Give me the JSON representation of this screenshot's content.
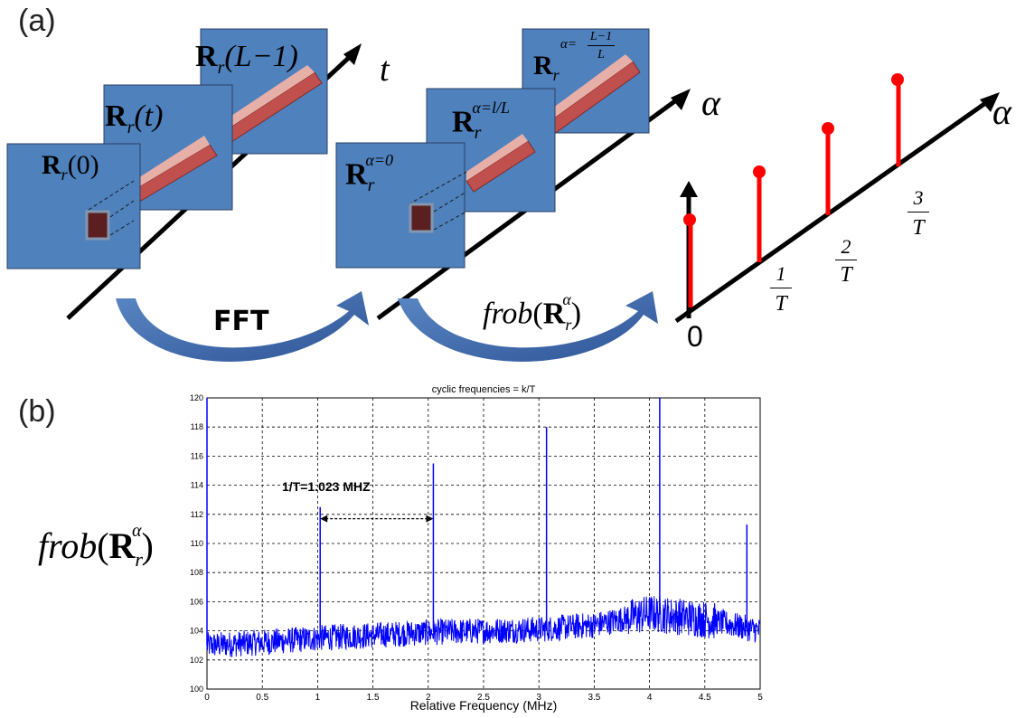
{
  "panel_a": {
    "label": "(a)",
    "stack1": {
      "frame_back": {
        "base": "R",
        "sub": "r",
        "arg": "(L−1)"
      },
      "frame_mid": {
        "base": "R",
        "sub": "r",
        "arg": "(t)"
      },
      "frame_front": {
        "base": "R",
        "sub": "r",
        "arg": "(0)"
      },
      "axis_label": "t"
    },
    "fft_label": "FFT",
    "stack2": {
      "frame_back": {
        "base": "R",
        "sub": "r",
        "sup_alpha": "α=",
        "sup_num": "L−1",
        "sup_den": "L"
      },
      "frame_mid": {
        "base": "R",
        "sub": "r",
        "sup": "α=l/L"
      },
      "frame_front": {
        "base": "R",
        "sub": "r",
        "sup": "α=0"
      },
      "axis_label": "α"
    },
    "frob_label": {
      "prefix": "frob",
      "base": "R",
      "sub": "r",
      "sup": "α"
    },
    "stem_plot": {
      "axis_label": "α",
      "origin_label": "0",
      "ticks": [
        {
          "num": "1",
          "den": "T"
        },
        {
          "num": "2",
          "den": "T"
        },
        {
          "num": "3",
          "den": "T"
        }
      ]
    },
    "colors": {
      "frame_blue": "#4f81bd",
      "bar_red": "#c0504d",
      "bar_highlight": "#e6b0a8",
      "stem_red": "#ff0000",
      "pixel": "#5c1f1f"
    }
  },
  "panel_b": {
    "label": "(b)",
    "ylabel": {
      "prefix": "frob",
      "base": "R",
      "sub": "r",
      "sup": "α"
    },
    "annotation": "1/T=1.023 MHZ"
  },
  "chart_data": {
    "type": "line",
    "title": "cyclic frequencies = k/T",
    "xlabel": "Relative Frequency (MHz)",
    "ylabel": "",
    "xlim": [
      0,
      5
    ],
    "ylim": [
      100,
      120
    ],
    "xticks": [
      "0",
      "0.5",
      "1",
      "1.5",
      "2",
      "2.5",
      "3",
      "3.5",
      "4",
      "4.5",
      "5"
    ],
    "yticks": [
      "100",
      "102",
      "104",
      "106",
      "108",
      "110",
      "112",
      "114",
      "116",
      "118",
      "120"
    ],
    "grid": true,
    "line_color": "#0000ff",
    "baseline": [
      {
        "x": 0,
        "y": 103.0
      },
      {
        "x": 0.5,
        "y": 103.2
      },
      {
        "x": 1.0,
        "y": 103.5
      },
      {
        "x": 1.5,
        "y": 103.7
      },
      {
        "x": 2.0,
        "y": 103.9
      },
      {
        "x": 2.5,
        "y": 104.0
      },
      {
        "x": 3.0,
        "y": 104.1
      },
      {
        "x": 3.5,
        "y": 104.4
      },
      {
        "x": 4.0,
        "y": 105.2
      },
      {
        "x": 4.5,
        "y": 104.8
      },
      {
        "x": 5.0,
        "y": 104.0
      }
    ],
    "peaks": [
      {
        "x": 0.0,
        "y": 120
      },
      {
        "x": 1.023,
        "y": 112.5
      },
      {
        "x": 2.046,
        "y": 115.5
      },
      {
        "x": 3.069,
        "y": 118
      },
      {
        "x": 4.092,
        "y": 120
      },
      {
        "x": 4.88,
        "y": 111.3
      }
    ],
    "annotation": {
      "text": "1/T=1.023 MHZ",
      "x_from": 1.023,
      "x_to": 2.046,
      "y": 111.7
    }
  }
}
